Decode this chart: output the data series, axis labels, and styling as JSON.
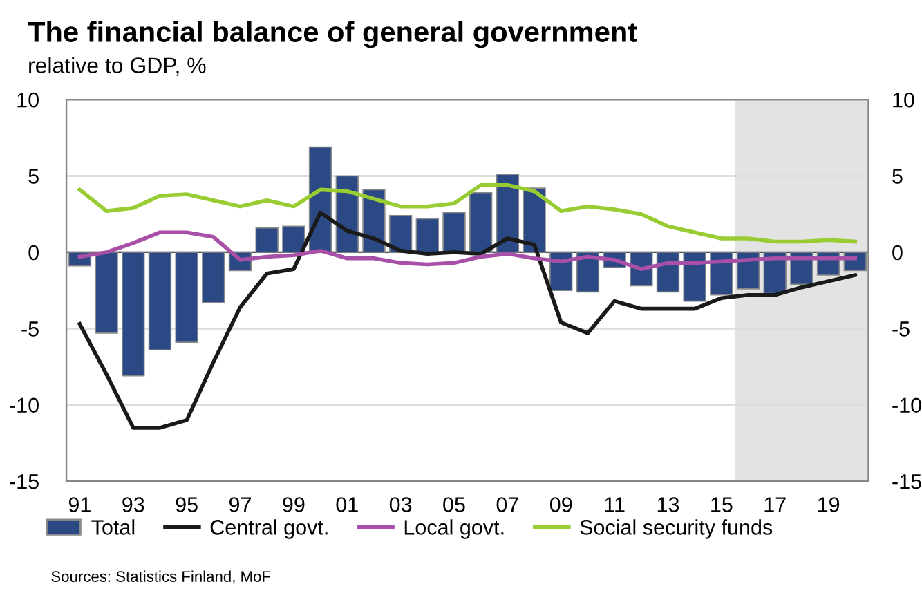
{
  "chart_data": {
    "type": "bar",
    "title": "The financial balance of general government",
    "subtitle": "relative to GDP, %",
    "annotations": [
      "Sources: Statistics Finland, MoF"
    ],
    "x": [
      1991,
      1992,
      1993,
      1994,
      1995,
      1996,
      1997,
      1998,
      1999,
      2000,
      2001,
      2002,
      2003,
      2004,
      2005,
      2006,
      2007,
      2008,
      2009,
      2010,
      2011,
      2012,
      2013,
      2014,
      2015,
      2016,
      2017,
      2018,
      2019,
      2020
    ],
    "series": [
      {
        "name": "Total",
        "color": "#2b4a85",
        "values": [
          -0.9,
          -5.3,
          -8.1,
          -6.4,
          -5.9,
          -3.3,
          -1.2,
          1.6,
          1.7,
          6.9,
          5.0,
          4.1,
          2.4,
          2.2,
          2.6,
          3.9,
          5.1,
          4.2,
          -2.5,
          -2.6,
          -1.0,
          -2.2,
          -2.6,
          -3.2,
          -2.8,
          -2.4,
          -2.7,
          -2.1,
          -1.5,
          -1.2
        ]
      },
      {
        "name": "Central govt.",
        "type": "line",
        "color": "#1a1a1a",
        "values": [
          -4.7,
          -8.0,
          -11.5,
          -11.5,
          -11.0,
          -7.2,
          -3.6,
          -1.4,
          -1.1,
          2.6,
          1.4,
          0.9,
          0.1,
          -0.1,
          0.0,
          -0.1,
          0.9,
          0.5,
          -4.6,
          -5.3,
          -3.2,
          -3.7,
          -3.7,
          -3.7,
          -3.0,
          -2.8,
          -2.8,
          -2.3,
          -1.9,
          -1.5
        ]
      },
      {
        "name": "Local govt.",
        "type": "line",
        "color": "#a84fa8",
        "values": [
          -0.3,
          0.0,
          0.6,
          1.3,
          1.3,
          1.0,
          -0.5,
          -0.3,
          -0.2,
          0.1,
          -0.4,
          -0.4,
          -0.7,
          -0.8,
          -0.7,
          -0.3,
          -0.1,
          -0.4,
          -0.6,
          -0.3,
          -0.5,
          -1.1,
          -0.7,
          -0.7,
          -0.6,
          -0.5,
          -0.4,
          -0.4,
          -0.4,
          -0.4
        ]
      },
      {
        "name": "Social security funds",
        "type": "line",
        "color": "#99cc33",
        "values": [
          4.1,
          2.7,
          2.9,
          3.7,
          3.8,
          3.4,
          3.0,
          3.4,
          3.0,
          4.1,
          4.0,
          3.5,
          3.0,
          3.0,
          3.2,
          4.4,
          4.4,
          4.0,
          2.7,
          3.0,
          2.8,
          2.5,
          1.7,
          1.3,
          0.9,
          0.9,
          0.7,
          0.7,
          0.8,
          0.7
        ]
      }
    ],
    "xlim": [
      1990.5,
      2020.5
    ],
    "xticks": [
      {
        "value": 1991,
        "label": "91"
      },
      {
        "value": 1993,
        "label": "93"
      },
      {
        "value": 1995,
        "label": "95"
      },
      {
        "value": 1997,
        "label": "97"
      },
      {
        "value": 1999,
        "label": "99"
      },
      {
        "value": 2001,
        "label": "01"
      },
      {
        "value": 2003,
        "label": "03"
      },
      {
        "value": 2005,
        "label": "05"
      },
      {
        "value": 2007,
        "label": "07"
      },
      {
        "value": 2009,
        "label": "09"
      },
      {
        "value": 2011,
        "label": "11"
      },
      {
        "value": 2013,
        "label": "13"
      },
      {
        "value": 2015,
        "label": "15"
      },
      {
        "value": 2017,
        "label": "17"
      },
      {
        "value": 2019,
        "label": "19"
      }
    ],
    "ylim": [
      -15,
      10
    ],
    "yticks": [
      -15,
      -10,
      -5,
      0,
      5,
      10
    ],
    "y2lim": [
      -15,
      10
    ],
    "y2ticks": [
      -15,
      -10,
      -5,
      0,
      5,
      10
    ],
    "bands": [
      {
        "axis": "x",
        "from": 2015.5,
        "to": 2020.5,
        "color": "#e3e3e3"
      }
    ],
    "grid": "y",
    "legend": "bottom",
    "marker": "none",
    "line_style": "solid"
  }
}
